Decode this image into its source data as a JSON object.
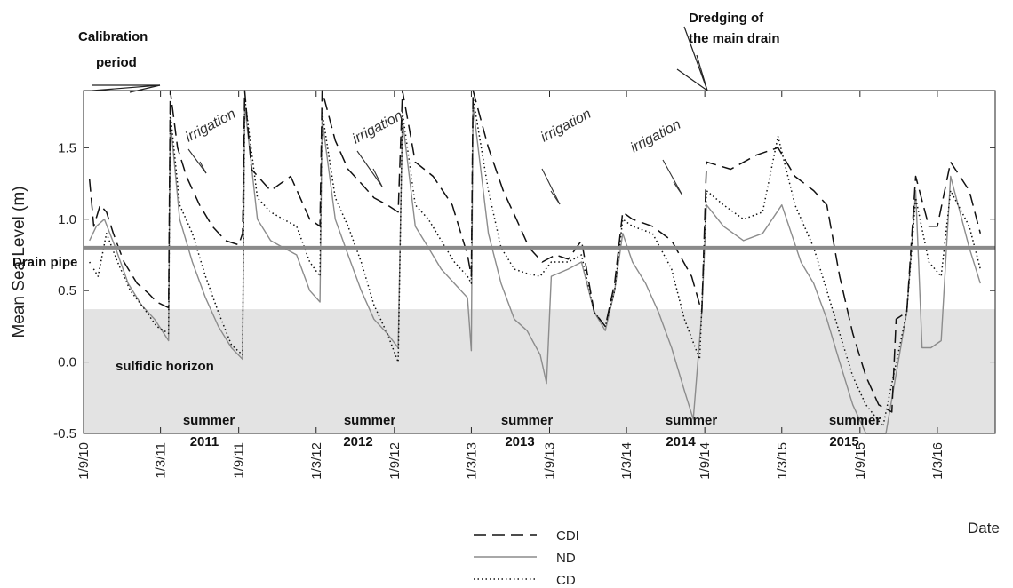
{
  "chart_data": {
    "type": "line",
    "xlabel": "Date",
    "ylabel": "Mean Sea Level (m)",
    "ylim": [
      -0.5,
      1.9
    ],
    "yticks": [
      -0.5,
      0.0,
      0.5,
      1.0,
      1.5
    ],
    "yticklabels": [
      "-0.5",
      "0.0",
      "0.5",
      "1.0",
      "1.5"
    ],
    "xlim": [
      "2010-09-01",
      "2016-07-15"
    ],
    "xticks": [
      "2010-09-01",
      "2011-03-01",
      "2011-09-01",
      "2012-03-01",
      "2012-09-01",
      "2013-03-01",
      "2013-09-01",
      "2014-03-01",
      "2014-09-01",
      "2015-03-01",
      "2015-09-01",
      "2016-03-01"
    ],
    "xticklabels": [
      "1/9/10",
      "1/3/11",
      "1/9/11",
      "1/3/12",
      "1/9/12",
      "1/3/13",
      "1/9/13",
      "1/3/14",
      "1/9/14",
      "1/3/15",
      "1/9/15",
      "1/3/16"
    ],
    "drain_pipe_level": 0.8,
    "sulfidic_horizon_top": 0.37,
    "series": [
      {
        "name": "CDI",
        "style": "dashed",
        "color": "#111111",
        "points": [
          [
            "2010-09-15",
            1.28
          ],
          [
            "2010-09-25",
            0.95
          ],
          [
            "2010-10-10",
            1.1
          ],
          [
            "2010-10-25",
            1.05
          ],
          [
            "2010-11-10",
            0.9
          ],
          [
            "2010-12-05",
            0.7
          ],
          [
            "2011-01-05",
            0.55
          ],
          [
            "2011-02-01",
            0.48
          ],
          [
            "2011-02-20",
            0.42
          ],
          [
            "2011-03-20",
            0.38
          ],
          [
            "2011-03-24",
            1.9
          ],
          [
            "2011-04-10",
            1.5
          ],
          [
            "2011-05-01",
            1.3
          ],
          [
            "2011-06-01",
            1.1
          ],
          [
            "2011-07-01",
            0.95
          ],
          [
            "2011-08-01",
            0.85
          ],
          [
            "2011-09-01",
            0.82
          ],
          [
            "2011-09-10",
            0.9
          ],
          [
            "2011-09-15",
            1.9
          ],
          [
            "2011-10-01",
            1.35
          ],
          [
            "2011-11-15",
            1.2
          ],
          [
            "2012-01-01",
            1.3
          ],
          [
            "2012-02-15",
            1.0
          ],
          [
            "2012-03-10",
            0.95
          ],
          [
            "2012-03-15",
            1.9
          ],
          [
            "2012-04-15",
            1.55
          ],
          [
            "2012-05-15",
            1.35
          ],
          [
            "2012-06-15",
            1.25
          ],
          [
            "2012-07-15",
            1.15
          ],
          [
            "2012-08-15",
            1.1
          ],
          [
            "2012-09-10",
            1.05
          ],
          [
            "2012-09-20",
            1.9
          ],
          [
            "2012-10-20",
            1.4
          ],
          [
            "2012-12-01",
            1.3
          ],
          [
            "2013-01-15",
            1.1
          ],
          [
            "2013-02-20",
            0.75
          ],
          [
            "2013-03-01",
            0.6
          ],
          [
            "2013-03-05",
            1.9
          ],
          [
            "2013-04-10",
            1.5
          ],
          [
            "2013-05-15",
            1.2
          ],
          [
            "2013-06-15",
            1.0
          ],
          [
            "2013-07-15",
            0.8
          ],
          [
            "2013-08-15",
            0.7
          ],
          [
            "2013-09-15",
            0.75
          ],
          [
            "2013-10-15",
            0.72
          ],
          [
            "2013-11-15",
            0.85
          ],
          [
            "2013-12-15",
            0.35
          ],
          [
            "2014-01-10",
            0.25
          ],
          [
            "2014-02-01",
            0.55
          ],
          [
            "2014-02-20",
            1.05
          ],
          [
            "2014-03-15",
            1.0
          ],
          [
            "2014-05-01",
            0.95
          ],
          [
            "2014-06-15",
            0.85
          ],
          [
            "2014-08-01",
            0.6
          ],
          [
            "2014-08-25",
            0.35
          ],
          [
            "2014-09-05",
            1.4
          ],
          [
            "2014-11-01",
            1.35
          ],
          [
            "2015-01-01",
            1.45
          ],
          [
            "2015-02-20",
            1.5
          ],
          [
            "2015-04-01",
            1.3
          ],
          [
            "2015-05-15",
            1.2
          ],
          [
            "2015-06-15",
            1.1
          ],
          [
            "2015-07-15",
            0.6
          ],
          [
            "2015-08-15",
            0.2
          ],
          [
            "2015-09-15",
            -0.1
          ],
          [
            "2015-10-15",
            -0.3
          ],
          [
            "2015-11-15",
            -0.35
          ],
          [
            "2015-11-25",
            0.3
          ],
          [
            "2015-12-20",
            0.35
          ],
          [
            "2016-01-10",
            1.3
          ],
          [
            "2016-02-10",
            0.95
          ],
          [
            "2016-03-01",
            0.95
          ],
          [
            "2016-04-01",
            1.4
          ],
          [
            "2016-05-15",
            1.2
          ],
          [
            "2016-06-10",
            0.9
          ]
        ]
      },
      {
        "name": "ND",
        "style": "solid",
        "color": "#8c8c8c",
        "points": [
          [
            "2010-09-15",
            0.85
          ],
          [
            "2010-10-01",
            0.95
          ],
          [
            "2010-10-20",
            1.0
          ],
          [
            "2010-11-15",
            0.8
          ],
          [
            "2010-12-15",
            0.55
          ],
          [
            "2011-01-15",
            0.4
          ],
          [
            "2011-02-15",
            0.3
          ],
          [
            "2011-03-20",
            0.15
          ],
          [
            "2011-03-24",
            1.7
          ],
          [
            "2011-04-15",
            1.0
          ],
          [
            "2011-05-15",
            0.7
          ],
          [
            "2011-06-15",
            0.45
          ],
          [
            "2011-07-15",
            0.25
          ],
          [
            "2011-08-15",
            0.1
          ],
          [
            "2011-09-10",
            0.02
          ],
          [
            "2011-09-15",
            1.8
          ],
          [
            "2011-10-15",
            1.0
          ],
          [
            "2011-11-15",
            0.85
          ],
          [
            "2011-12-15",
            0.8
          ],
          [
            "2012-01-15",
            0.75
          ],
          [
            "2012-02-15",
            0.5
          ],
          [
            "2012-03-10",
            0.42
          ],
          [
            "2012-03-15",
            1.7
          ],
          [
            "2012-04-15",
            1.0
          ],
          [
            "2012-05-15",
            0.75
          ],
          [
            "2012-06-15",
            0.5
          ],
          [
            "2012-07-15",
            0.3
          ],
          [
            "2012-08-15",
            0.2
          ],
          [
            "2012-09-10",
            0.1
          ],
          [
            "2012-09-20",
            1.7
          ],
          [
            "2012-10-20",
            0.95
          ],
          [
            "2012-11-20",
            0.8
          ],
          [
            "2012-12-20",
            0.65
          ],
          [
            "2013-01-20",
            0.55
          ],
          [
            "2013-02-20",
            0.45
          ],
          [
            "2013-03-01",
            0.08
          ],
          [
            "2013-03-05",
            1.8
          ],
          [
            "2013-04-10",
            0.9
          ],
          [
            "2013-05-10",
            0.55
          ],
          [
            "2013-06-10",
            0.3
          ],
          [
            "2013-07-10",
            0.22
          ],
          [
            "2013-08-10",
            0.05
          ],
          [
            "2013-08-25",
            -0.15
          ],
          [
            "2013-09-05",
            0.6
          ],
          [
            "2013-10-15",
            0.65
          ],
          [
            "2013-11-15",
            0.7
          ],
          [
            "2013-12-15",
            0.35
          ],
          [
            "2014-01-10",
            0.22
          ],
          [
            "2014-02-01",
            0.5
          ],
          [
            "2014-02-20",
            0.9
          ],
          [
            "2014-03-15",
            0.7
          ],
          [
            "2014-04-15",
            0.55
          ],
          [
            "2014-05-15",
            0.35
          ],
          [
            "2014-06-15",
            0.1
          ],
          [
            "2014-07-15",
            -0.2
          ],
          [
            "2014-08-05",
            -0.4
          ],
          [
            "2014-08-25",
            0.35
          ],
          [
            "2014-09-05",
            1.1
          ],
          [
            "2014-10-15",
            0.95
          ],
          [
            "2014-12-01",
            0.85
          ],
          [
            "2015-01-15",
            0.9
          ],
          [
            "2015-03-01",
            1.1
          ],
          [
            "2015-04-15",
            0.7
          ],
          [
            "2015-05-15",
            0.55
          ],
          [
            "2015-06-15",
            0.3
          ],
          [
            "2015-07-15",
            0.0
          ],
          [
            "2015-08-15",
            -0.3
          ],
          [
            "2015-09-15",
            -0.5
          ],
          [
            "2015-11-01",
            -0.5
          ],
          [
            "2015-12-20",
            0.35
          ],
          [
            "2016-01-10",
            1.2
          ],
          [
            "2016-01-25",
            0.1
          ],
          [
            "2016-02-15",
            0.1
          ],
          [
            "2016-03-10",
            0.15
          ],
          [
            "2016-04-01",
            1.3
          ],
          [
            "2016-05-15",
            0.8
          ],
          [
            "2016-06-10",
            0.55
          ]
        ]
      },
      {
        "name": "CD",
        "style": "dotted",
        "color": "#111111",
        "points": [
          [
            "2010-09-15",
            0.7
          ],
          [
            "2010-10-05",
            0.6
          ],
          [
            "2010-10-25",
            0.9
          ],
          [
            "2010-11-20",
            0.7
          ],
          [
            "2010-12-20",
            0.5
          ],
          [
            "2011-01-20",
            0.38
          ],
          [
            "2011-02-20",
            0.25
          ],
          [
            "2011-03-20",
            0.2
          ],
          [
            "2011-03-24",
            1.75
          ],
          [
            "2011-04-15",
            1.1
          ],
          [
            "2011-05-15",
            0.9
          ],
          [
            "2011-06-15",
            0.6
          ],
          [
            "2011-07-15",
            0.35
          ],
          [
            "2011-08-15",
            0.12
          ],
          [
            "2011-09-10",
            0.05
          ],
          [
            "2011-09-15",
            1.85
          ],
          [
            "2011-10-15",
            1.15
          ],
          [
            "2011-11-15",
            1.05
          ],
          [
            "2011-12-15",
            1.0
          ],
          [
            "2012-01-15",
            0.95
          ],
          [
            "2012-02-15",
            0.7
          ],
          [
            "2012-03-10",
            0.6
          ],
          [
            "2012-03-15",
            1.75
          ],
          [
            "2012-04-15",
            1.15
          ],
          [
            "2012-05-15",
            0.95
          ],
          [
            "2012-06-15",
            0.7
          ],
          [
            "2012-07-15",
            0.4
          ],
          [
            "2012-08-15",
            0.2
          ],
          [
            "2012-09-10",
            0.0
          ],
          [
            "2012-09-20",
            1.75
          ],
          [
            "2012-10-20",
            1.1
          ],
          [
            "2012-11-20",
            1.0
          ],
          [
            "2012-12-20",
            0.85
          ],
          [
            "2013-01-20",
            0.7
          ],
          [
            "2013-02-20",
            0.6
          ],
          [
            "2013-03-01",
            0.55
          ],
          [
            "2013-03-05",
            1.85
          ],
          [
            "2013-04-10",
            1.2
          ],
          [
            "2013-05-10",
            0.8
          ],
          [
            "2013-06-10",
            0.65
          ],
          [
            "2013-07-10",
            0.62
          ],
          [
            "2013-08-10",
            0.6
          ],
          [
            "2013-09-05",
            0.7
          ],
          [
            "2013-10-15",
            0.7
          ],
          [
            "2013-11-15",
            0.75
          ],
          [
            "2013-12-15",
            0.35
          ],
          [
            "2014-01-10",
            0.25
          ],
          [
            "2014-02-01",
            0.5
          ],
          [
            "2014-02-20",
            1.0
          ],
          [
            "2014-03-15",
            0.95
          ],
          [
            "2014-05-01",
            0.9
          ],
          [
            "2014-06-15",
            0.65
          ],
          [
            "2014-07-15",
            0.3
          ],
          [
            "2014-08-20",
            0.02
          ],
          [
            "2014-09-05",
            1.2
          ],
          [
            "2014-10-15",
            1.1
          ],
          [
            "2014-12-01",
            1.0
          ],
          [
            "2015-01-15",
            1.05
          ],
          [
            "2015-02-20",
            1.58
          ],
          [
            "2015-04-01",
            1.1
          ],
          [
            "2015-05-15",
            0.8
          ],
          [
            "2015-06-15",
            0.5
          ],
          [
            "2015-07-15",
            0.2
          ],
          [
            "2015-08-15",
            -0.1
          ],
          [
            "2015-09-15",
            -0.3
          ],
          [
            "2015-10-25",
            -0.45
          ],
          [
            "2015-12-20",
            0.35
          ],
          [
            "2016-01-10",
            1.15
          ],
          [
            "2016-02-10",
            0.7
          ],
          [
            "2016-03-10",
            0.6
          ],
          [
            "2016-04-01",
            1.2
          ],
          [
            "2016-05-15",
            0.95
          ],
          [
            "2016-06-10",
            0.65
          ]
        ]
      }
    ],
    "annotations": {
      "calibration": [
        "Calibration",
        "period"
      ],
      "dredging": [
        "Dredging of",
        "the main drain"
      ],
      "drain_pipe": "Drain pipe",
      "sulfidic": "sulfidic horizon",
      "irrigation": [
        "irrigation",
        "irrigation",
        "irrigation",
        "irrigation"
      ],
      "summer": [
        "summer",
        "summer",
        "summer",
        "summer",
        "summer"
      ],
      "years": [
        "2011",
        "2012",
        "2013",
        "2014",
        "2015"
      ]
    },
    "legend": [
      "CDI",
      "ND",
      "CD"
    ],
    "colors": {
      "sulfidic_band": "#e3e3e3",
      "drain_pipe": "#8a8a8a"
    }
  }
}
